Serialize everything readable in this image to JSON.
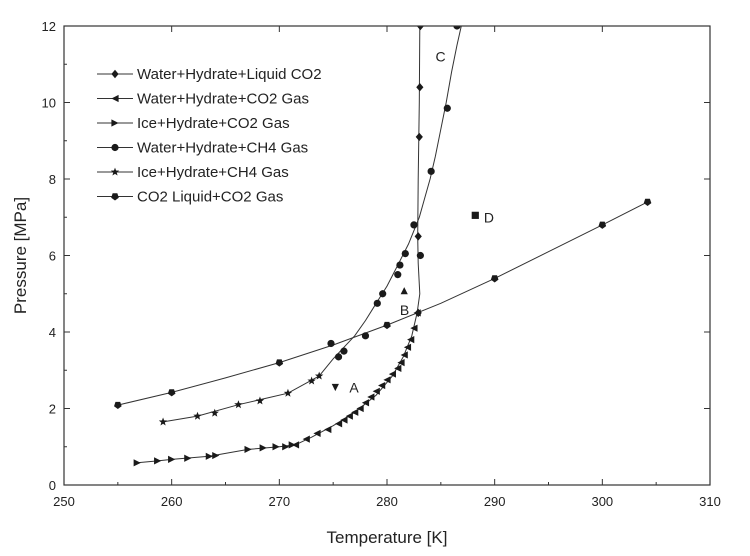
{
  "chart_data": {
    "type": "scatter",
    "title": "",
    "xlabel": "Temperature [K]",
    "ylabel": "Pressure [MPa]",
    "xlim": [
      250,
      310
    ],
    "ylim": [
      0,
      12
    ],
    "xticks": [
      250,
      260,
      270,
      280,
      290,
      300,
      310
    ],
    "yticks": [
      0,
      2,
      4,
      6,
      8,
      10,
      12
    ],
    "grid": false,
    "legend_position": "top-left",
    "series": [
      {
        "name": "Water+Hydrate+Liquid CO2",
        "marker": "diamond",
        "x": [
          282.9,
          282.9,
          283.0,
          283.05,
          283.1,
          283.2
        ],
        "y": [
          4.5,
          6.5,
          9.1,
          10.4,
          12.0,
          13.0
        ]
      },
      {
        "name": "Water+Hydrate+CO2 Gas",
        "marker": "triangle-left",
        "x": [
          271.5,
          272.5,
          273.5,
          274.5,
          275.5,
          276.0,
          276.5,
          277.0,
          277.5,
          278.0,
          278.5,
          279.0,
          279.5,
          280.0,
          280.5,
          281.0,
          281.3,
          281.6,
          281.9,
          282.2,
          282.5,
          282.8
        ],
        "y": [
          1.05,
          1.2,
          1.35,
          1.45,
          1.6,
          1.7,
          1.8,
          1.9,
          2.0,
          2.15,
          2.3,
          2.45,
          2.6,
          2.75,
          2.9,
          3.05,
          3.2,
          3.4,
          3.6,
          3.8,
          4.1,
          4.5
        ]
      },
      {
        "name": "Ice+Hydrate+CO2 Gas",
        "marker": "triangle-right",
        "x": [
          256.8,
          258.7,
          260.0,
          261.5,
          263.5,
          264.1,
          267.1,
          268.5,
          269.7,
          270.6,
          271.2
        ],
        "y": [
          0.58,
          0.63,
          0.67,
          0.7,
          0.75,
          0.77,
          0.93,
          0.97,
          1.0,
          1.0,
          1.05
        ]
      },
      {
        "name": "Water+Hydrate+CH4 Gas",
        "marker": "circle",
        "x": [
          274.8,
          275.5,
          276.0,
          278.0,
          279.1,
          279.6,
          281.0,
          281.2,
          281.7,
          282.5,
          283.1,
          284.1,
          285.6,
          286.5
        ],
        "y": [
          3.7,
          3.35,
          3.5,
          3.9,
          4.75,
          5.0,
          5.5,
          5.75,
          6.05,
          6.8,
          6.0,
          8.2,
          9.85,
          12.0
        ]
      },
      {
        "name": "Ice+Hydrate+CH4 Gas",
        "marker": "star",
        "x": [
          259.2,
          262.4,
          264.0,
          266.2,
          268.2,
          270.8,
          273.0,
          273.7
        ],
        "y": [
          1.65,
          1.8,
          1.88,
          2.1,
          2.2,
          2.4,
          2.72,
          2.85
        ]
      },
      {
        "name": "CO2 Liquid+CO2 Gas",
        "marker": "pentagon",
        "x": [
          255.0,
          260.0,
          270.0,
          280.0,
          290.0,
          300.0,
          304.2
        ],
        "y": [
          2.09,
          2.42,
          3.2,
          4.18,
          5.4,
          6.8,
          7.4
        ]
      }
    ],
    "curves": [
      {
        "x": [
          255.0,
          260.0,
          265.0,
          270.0,
          275.0,
          280.0,
          285.0,
          290.0,
          295.0,
          300.0,
          304.2
        ],
        "y": [
          2.09,
          2.42,
          2.8,
          3.2,
          3.66,
          4.18,
          4.75,
          5.4,
          6.1,
          6.8,
          7.4
        ]
      },
      {
        "x": [
          259.2,
          262.4,
          266.2,
          270.8,
          273.7,
          275.0,
          276.0,
          277.0,
          278.0,
          279.0,
          280.0,
          281.0,
          282.0,
          283.0,
          283.5,
          284.0,
          284.5,
          285.0,
          285.5,
          286.0,
          286.5,
          286.9
        ],
        "y": [
          1.65,
          1.8,
          2.1,
          2.4,
          2.85,
          3.3,
          3.6,
          3.9,
          4.3,
          4.75,
          5.2,
          5.75,
          6.3,
          7.0,
          7.5,
          8.0,
          8.6,
          9.3,
          10.0,
          10.8,
          11.5,
          12.0
        ]
      },
      {
        "x": [
          256.8,
          258.7,
          260.0,
          263.5,
          267.1,
          270.0,
          271.5,
          273.0,
          275.0,
          277.0,
          279.0,
          280.5,
          281.5,
          282.3,
          282.8,
          283.05,
          282.9,
          282.85,
          282.9,
          283.0,
          283.05
        ],
        "y": [
          0.58,
          0.63,
          0.67,
          0.75,
          0.93,
          1.0,
          1.05,
          1.25,
          1.55,
          1.9,
          2.35,
          2.85,
          3.35,
          3.9,
          4.5,
          5.0,
          5.8,
          6.5,
          8.0,
          10.0,
          12.0
        ]
      }
    ],
    "annotations": [
      {
        "label": "A",
        "marker": "triangle-down",
        "x": 275.2,
        "y": 2.55,
        "text_x": 276.5,
        "text_y": 2.55
      },
      {
        "label": "B",
        "marker": "triangle-up",
        "x": 281.6,
        "y": 5.08,
        "text_x": 281.2,
        "text_y": 4.58
      },
      {
        "label": "C",
        "marker": "",
        "x": 284.5,
        "y": 11.2,
        "text_x": 284.5,
        "text_y": 11.2
      },
      {
        "label": "D",
        "marker": "square",
        "x": 288.2,
        "y": 7.05,
        "text_x": 289.0,
        "text_y": 7.0
      }
    ]
  }
}
